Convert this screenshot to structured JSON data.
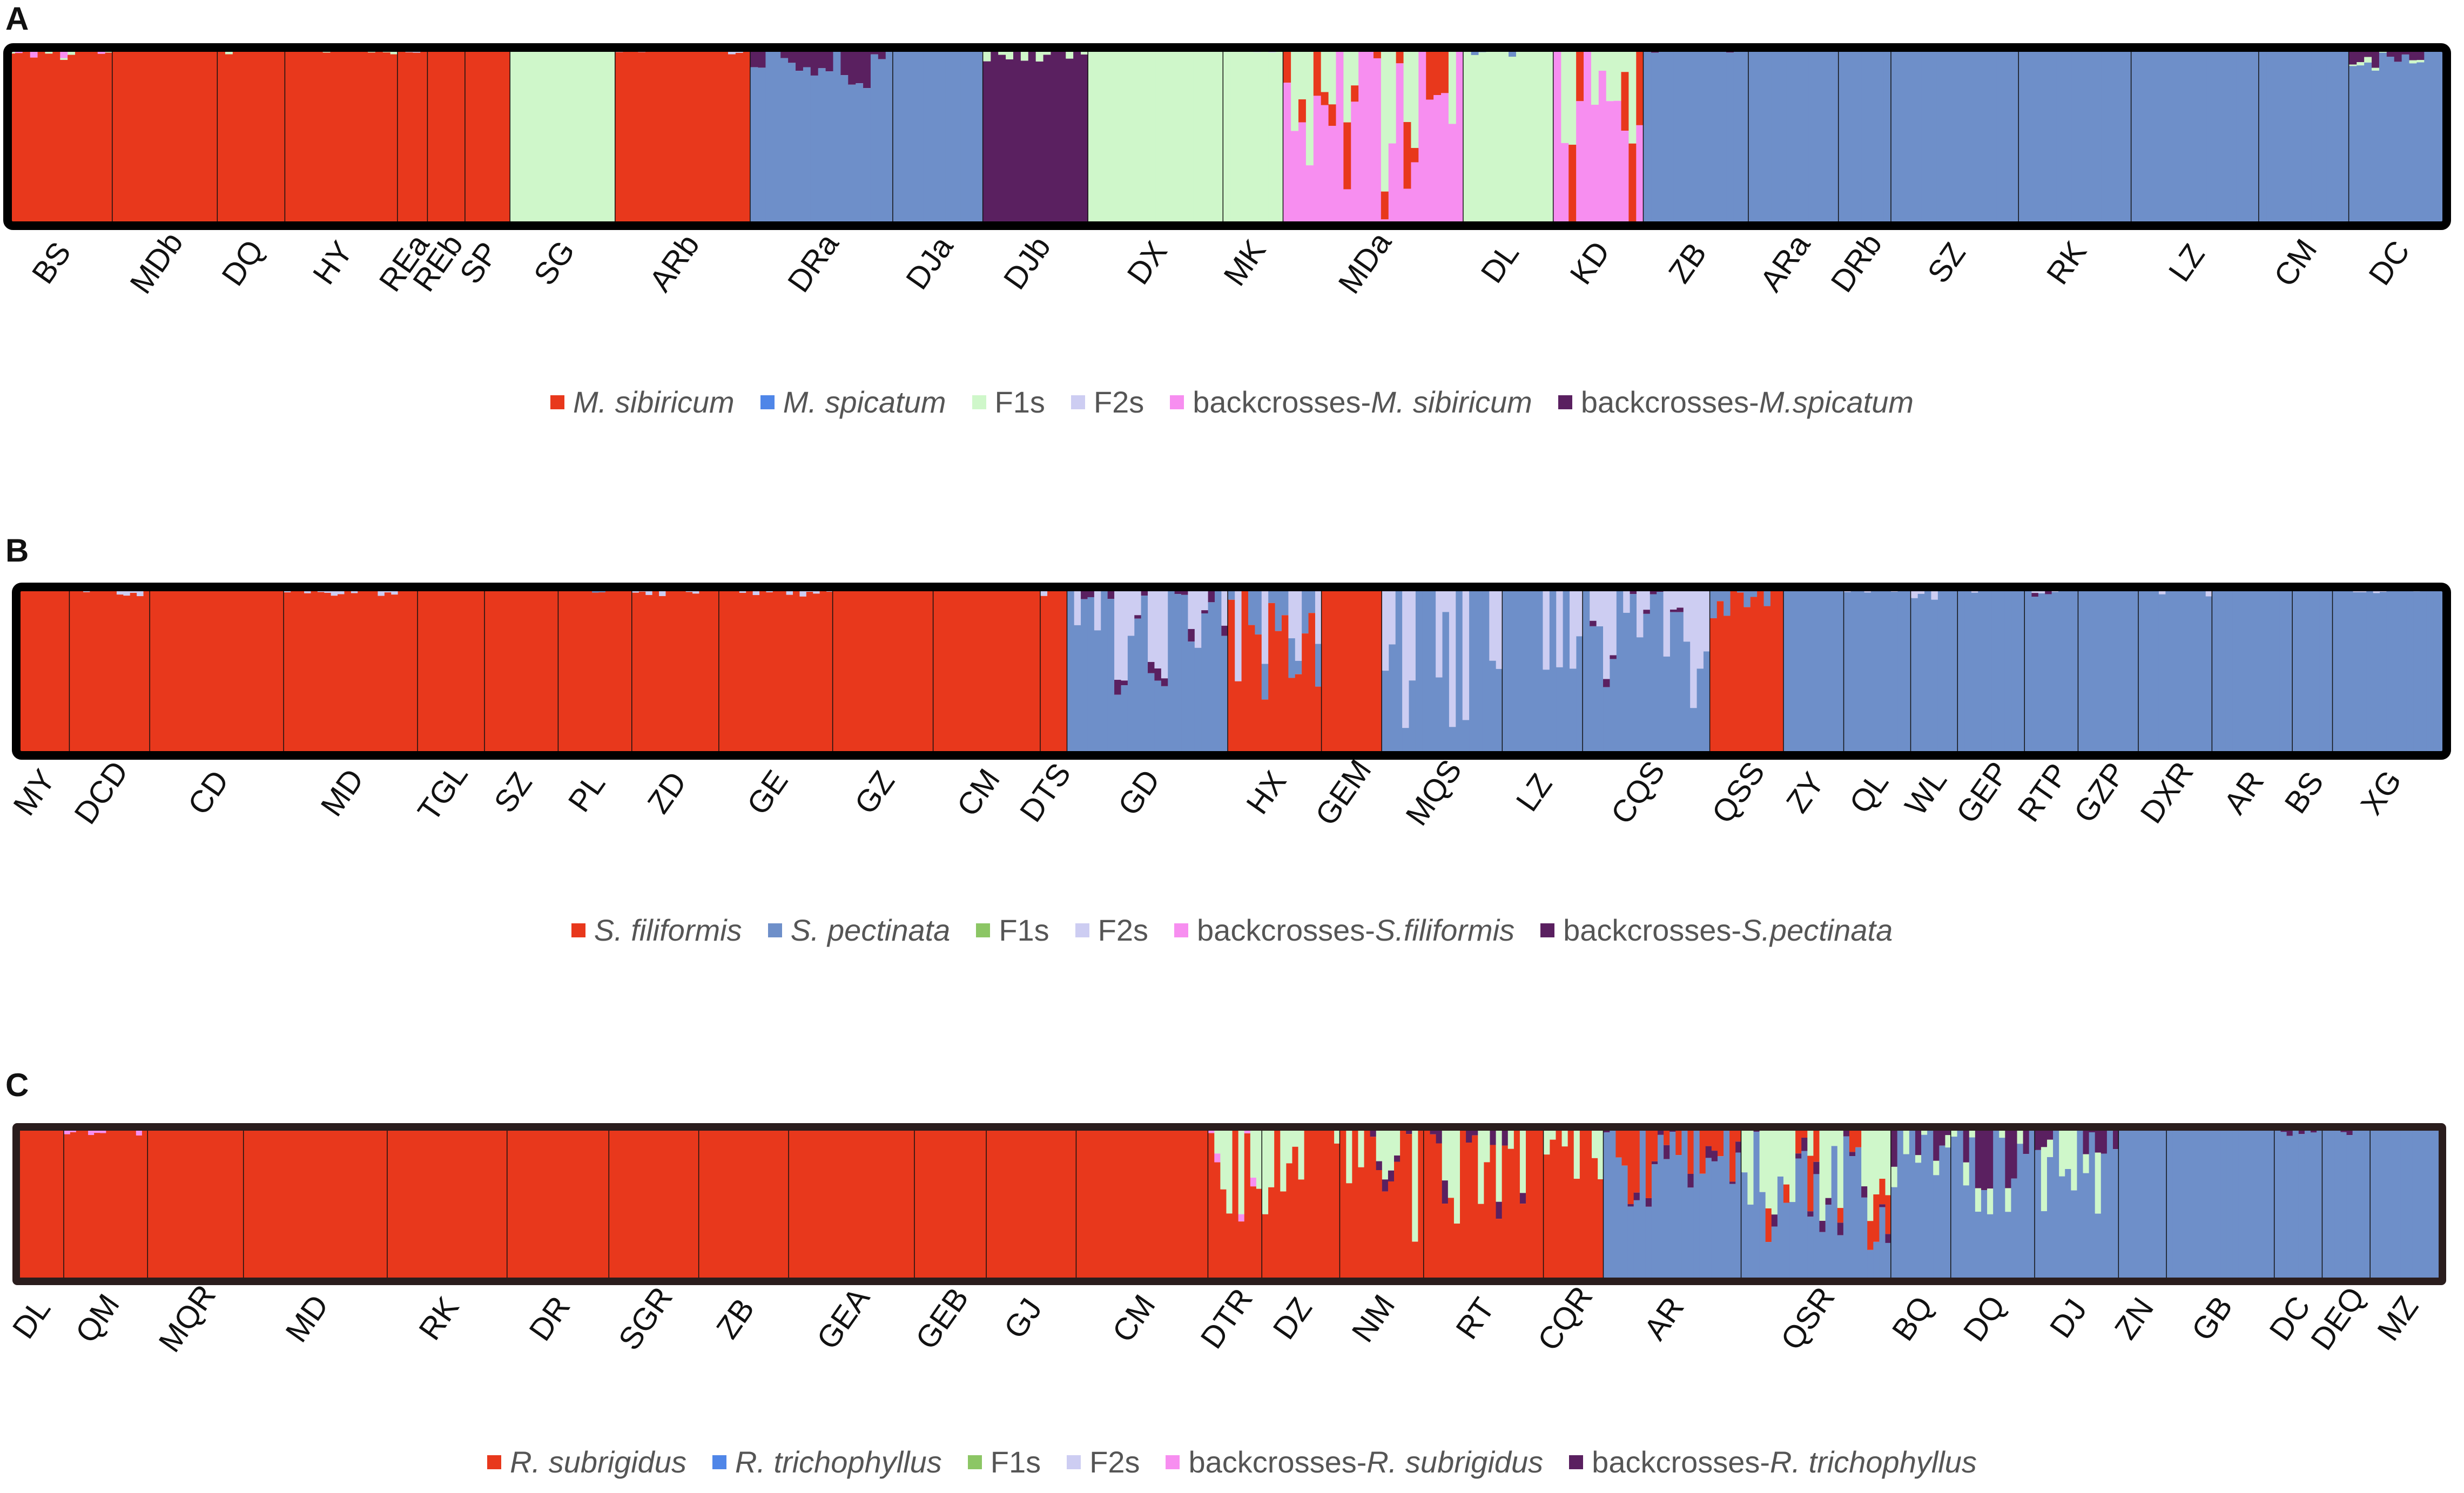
{
  "chart_data": [
    {
      "type": "stacked_bar_structure",
      "panel": "A",
      "classes": [
        {
          "key": "p1",
          "name": "M. sibiricum",
          "color": "#E8381C"
        },
        {
          "key": "p2",
          "name": "M. spicatum",
          "color": "#6E8FC9"
        },
        {
          "key": "f1",
          "name": "F1s",
          "color": "#CFF7CA"
        },
        {
          "key": "f2",
          "name": "F2s",
          "color": "#CDCDF2"
        },
        {
          "key": "bc1",
          "name": "backcrosses-M. sibiricum",
          "color": "#F78EF0"
        },
        {
          "key": "bc2",
          "name": "backcrosses-M.spicatum",
          "color": "#5A2060"
        }
      ],
      "legend": [
        {
          "text_pre": "",
          "text_italic": "M. sibiricum",
          "color": "#E8381C"
        },
        {
          "text_pre": "",
          "text_italic": "M. spicatum",
          "color": "#4F86E8"
        },
        {
          "text_pre": "F1s",
          "text_italic": "",
          "color": "#CFF7CA"
        },
        {
          "text_pre": "F2s",
          "text_italic": "",
          "color": "#CDCDF2"
        },
        {
          "text_pre": "backcrosses-",
          "text_italic": "M. sibiricum",
          "color": "#F78EF0"
        },
        {
          "text_pre": "backcrosses-",
          "text_italic": "M.spicatum",
          "color": "#5A2060"
        }
      ],
      "populations": [
        {
          "label": "BS",
          "n": 14,
          "base": "p1",
          "minor": [
            [
              "bc1",
              0.04
            ],
            [
              "f1",
              0.01
            ]
          ]
        },
        {
          "label": "MDb",
          "n": 14,
          "base": "p1",
          "minor": []
        },
        {
          "label": "DQ",
          "n": 9,
          "base": "p1",
          "minor": [
            [
              "f1",
              0.02
            ]
          ]
        },
        {
          "label": "HY",
          "n": 15,
          "base": "p1",
          "minor": [
            [
              "f1",
              0.02
            ]
          ]
        },
        {
          "label": "REa",
          "n": 4,
          "base": "p1",
          "minor": [
            [
              "f2",
              0.02
            ]
          ]
        },
        {
          "label": "REb",
          "n": 5,
          "base": "p1",
          "minor": [
            [
              "f2",
              0.02
            ]
          ]
        },
        {
          "label": "SP",
          "n": 6,
          "base": "p1",
          "minor": [
            [
              "f2",
              0.01
            ]
          ]
        },
        {
          "label": "SG",
          "n": 14,
          "base": "f1",
          "minor": []
        },
        {
          "label": "ARb",
          "n": 18,
          "base": "p1",
          "minor": [
            [
              "f2",
              0.02
            ]
          ]
        },
        {
          "label": "DRa",
          "n": 19,
          "base": "p2",
          "minor": [
            [
              "bc2",
              0.12
            ]
          ]
        },
        {
          "label": "DJa",
          "n": 12,
          "base": "p2",
          "minor": [
            [
              "f2",
              0.01
            ]
          ]
        },
        {
          "label": "DJb",
          "n": 14,
          "base": "bc2",
          "minor": [
            [
              "f1",
              0.05
            ]
          ]
        },
        {
          "label": "DX",
          "n": 18,
          "base": "f1",
          "minor": [
            [
              "f2",
              0.01
            ]
          ]
        },
        {
          "label": "MK",
          "n": 8,
          "base": "f1",
          "minor": [
            [
              "f2",
              0.02
            ]
          ]
        },
        {
          "label": "MDa",
          "n": 24,
          "base": "bc1",
          "minor": [
            [
              "f1",
              0.45
            ],
            [
              "p1",
              0.2
            ]
          ]
        },
        {
          "label": "DL",
          "n": 12,
          "base": "f1",
          "minor": [
            [
              "p2",
              0.05
            ]
          ]
        },
        {
          "label": "KD",
          "n": 12,
          "base": "bc1",
          "minor": [
            [
              "f1",
              0.3
            ],
            [
              "p1",
              0.3
            ]
          ]
        },
        {
          "label": "ZB",
          "n": 14,
          "base": "p2",
          "minor": [
            [
              "bc2",
              0.02
            ]
          ]
        },
        {
          "label": "ARa",
          "n": 12,
          "base": "p2",
          "minor": []
        },
        {
          "label": "DRb",
          "n": 7,
          "base": "p2",
          "minor": []
        },
        {
          "label": "SZ",
          "n": 17,
          "base": "p2",
          "minor": []
        },
        {
          "label": "RK",
          "n": 15,
          "base": "p2",
          "minor": []
        },
        {
          "label": "LZ",
          "n": 17,
          "base": "p2",
          "minor": []
        },
        {
          "label": "CM",
          "n": 12,
          "base": "p2",
          "minor": []
        },
        {
          "label": "DC",
          "n": 13,
          "base": "p2",
          "minor": [
            [
              "bc2",
              0.06
            ],
            [
              "f1",
              0.02
            ]
          ]
        }
      ]
    },
    {
      "type": "stacked_bar_structure",
      "panel": "B",
      "classes": [
        {
          "key": "p1",
          "name": "S. filiformis",
          "color": "#E8381C"
        },
        {
          "key": "p2",
          "name": "S. pectinata",
          "color": "#6E8FC9"
        },
        {
          "key": "f1",
          "name": "F1s",
          "color": "#8CC665"
        },
        {
          "key": "f2",
          "name": "F2s",
          "color": "#CDCDF2"
        },
        {
          "key": "bc1",
          "name": "backcrosses-S.filiformis",
          "color": "#F78EF0"
        },
        {
          "key": "bc2",
          "name": "backcrosses-S.pectinata",
          "color": "#5A2060"
        }
      ],
      "legend": [
        {
          "text_pre": "",
          "text_italic": "S. filiformis",
          "color": "#E8381C"
        },
        {
          "text_pre": "",
          "text_italic": "S. pectinata",
          "color": "#6E8FC9"
        },
        {
          "text_pre": "F1s",
          "text_italic": "",
          "color": "#8CC665"
        },
        {
          "text_pre": "F2s",
          "text_italic": "",
          "color": "#CDCDF2"
        },
        {
          "text_pre": "backcrosses-",
          "text_italic": "S.filiformis",
          "color": "#F78EF0"
        },
        {
          "text_pre": "backcrosses-",
          "text_italic": "S.pectinata",
          "color": "#5A2060"
        }
      ],
      "populations": [
        {
          "label": "MY",
          "n": 8,
          "base": "p1",
          "minor": []
        },
        {
          "label": "DCD",
          "n": 12,
          "base": "p1",
          "minor": [
            [
              "f2",
              0.03
            ]
          ]
        },
        {
          "label": "CD",
          "n": 20,
          "base": "p1",
          "minor": []
        },
        {
          "label": "MD",
          "n": 20,
          "base": "p1",
          "minor": [
            [
              "f2",
              0.03
            ]
          ]
        },
        {
          "label": "TGL",
          "n": 10,
          "base": "p1",
          "minor": []
        },
        {
          "label": "SZ",
          "n": 11,
          "base": "p1",
          "minor": [
            [
              "f2",
              0.01
            ]
          ]
        },
        {
          "label": "PL",
          "n": 11,
          "base": "p1",
          "minor": [
            [
              "p2",
              0.02
            ]
          ]
        },
        {
          "label": "ZD",
          "n": 13,
          "base": "p1",
          "minor": [
            [
              "f2",
              0.03
            ]
          ]
        },
        {
          "label": "GE",
          "n": 17,
          "base": "p1",
          "minor": [
            [
              "f2",
              0.03
            ]
          ]
        },
        {
          "label": "GZ",
          "n": 15,
          "base": "p1",
          "minor": []
        },
        {
          "label": "CM",
          "n": 16,
          "base": "p1",
          "minor": []
        },
        {
          "label": "DTS",
          "n": 4,
          "base": "p1",
          "minor": [
            [
              "f2",
              0.05
            ]
          ]
        },
        {
          "label": "GD",
          "n": 24,
          "base": "p2",
          "minor": [
            [
              "f2",
              0.3
            ],
            [
              "bc2",
              0.05
            ]
          ]
        },
        {
          "label": "HX",
          "n": 14,
          "base": "p1",
          "minor": [
            [
              "f2",
              0.3
            ],
            [
              "p2",
              0.15
            ]
          ]
        },
        {
          "label": "GEM",
          "n": 9,
          "base": "p1",
          "minor": []
        },
        {
          "label": "MQS",
          "n": 18,
          "base": "p2",
          "minor": [
            [
              "f2",
              0.45
            ]
          ]
        },
        {
          "label": "LZ",
          "n": 12,
          "base": "p2",
          "minor": [
            [
              "f2",
              0.3
            ]
          ]
        },
        {
          "label": "CQS",
          "n": 19,
          "base": "p2",
          "minor": [
            [
              "f2",
              0.4
            ],
            [
              "bc2",
              0.03
            ]
          ]
        },
        {
          "label": "QSS",
          "n": 11,
          "base": "p1",
          "minor": [
            [
              "p2",
              0.1
            ]
          ]
        },
        {
          "label": "ZY",
          "n": 9,
          "base": "p2",
          "minor": []
        },
        {
          "label": "QL",
          "n": 10,
          "base": "p2",
          "minor": [
            [
              "f2",
              0.02
            ]
          ]
        },
        {
          "label": "WL",
          "n": 7,
          "base": "p2",
          "minor": [
            [
              "f2",
              0.04
            ]
          ]
        },
        {
          "label": "GEP",
          "n": 10,
          "base": "p2",
          "minor": [
            [
              "f2",
              0.03
            ]
          ]
        },
        {
          "label": "RTP",
          "n": 8,
          "base": "p2",
          "minor": [
            [
              "f2",
              0.02
            ],
            [
              "bc2",
              0.02
            ]
          ]
        },
        {
          "label": "GZP",
          "n": 9,
          "base": "p2",
          "minor": [
            [
              "f2",
              0.01
            ]
          ]
        },
        {
          "label": "DXR",
          "n": 11,
          "base": "p2",
          "minor": [
            [
              "f2",
              0.03
            ]
          ]
        },
        {
          "label": "AR",
          "n": 12,
          "base": "p2",
          "minor": []
        },
        {
          "label": "BS",
          "n": 6,
          "base": "p2",
          "minor": [
            [
              "f2",
              0.01
            ]
          ]
        },
        {
          "label": "XG",
          "n": 17,
          "base": "p2",
          "minor": [
            [
              "f2",
              0.02
            ]
          ]
        }
      ]
    },
    {
      "type": "stacked_bar_structure",
      "panel": "C",
      "classes": [
        {
          "key": "p1",
          "name": "R. subrigidus",
          "color": "#E8381C"
        },
        {
          "key": "p2",
          "name": "R. trichophyllus",
          "color": "#6E8FC9"
        },
        {
          "key": "f1",
          "name": "F1s",
          "color": "#CFF7CA"
        },
        {
          "key": "f2",
          "name": "F2s",
          "color": "#CDCDF2"
        },
        {
          "key": "bc1",
          "name": "backcrosses-R. subrigidus",
          "color": "#F78EF0"
        },
        {
          "key": "bc2",
          "name": "backcrosses-R. trichophyllus",
          "color": "#5A2060"
        }
      ],
      "legend": [
        {
          "text_pre": "",
          "text_italic": "R. subrigidus",
          "color": "#E8381C"
        },
        {
          "text_pre": "",
          "text_italic": "R. trichophyllus",
          "color": "#4F86E8"
        },
        {
          "text_pre": "F1s",
          "text_italic": "",
          "color": "#8CC665"
        },
        {
          "text_pre": "F2s",
          "text_italic": "",
          "color": "#CDCDF2"
        },
        {
          "text_pre": "backcrosses-",
          "text_italic": "R. subrigidus",
          "color": "#F78EF0"
        },
        {
          "text_pre": "backcrosses-",
          "text_italic": "R. trichophyllus",
          "color": "#5A2060"
        }
      ],
      "populations": [
        {
          "label": "DL",
          "n": 8,
          "base": "p1",
          "minor": []
        },
        {
          "label": "QM",
          "n": 14,
          "base": "p1",
          "minor": [
            [
              "bc1",
              0.03
            ]
          ]
        },
        {
          "label": "MQR",
          "n": 16,
          "base": "p1",
          "minor": []
        },
        {
          "label": "MD",
          "n": 24,
          "base": "p1",
          "minor": []
        },
        {
          "label": "RK",
          "n": 20,
          "base": "p1",
          "minor": []
        },
        {
          "label": "DR",
          "n": 17,
          "base": "p1",
          "minor": []
        },
        {
          "label": "SGR",
          "n": 15,
          "base": "p1",
          "minor": []
        },
        {
          "label": "ZB",
          "n": 15,
          "base": "p1",
          "minor": []
        },
        {
          "label": "GEA",
          "n": 21,
          "base": "p1",
          "minor": []
        },
        {
          "label": "GEB",
          "n": 12,
          "base": "p1",
          "minor": []
        },
        {
          "label": "GJ",
          "n": 15,
          "base": "p1",
          "minor": []
        },
        {
          "label": "CM",
          "n": 22,
          "base": "p1",
          "minor": []
        },
        {
          "label": "DTR",
          "n": 9,
          "base": "p1",
          "minor": [
            [
              "f1",
              0.3
            ],
            [
              "bc1",
              0.03
            ]
          ]
        },
        {
          "label": "DZ",
          "n": 13,
          "base": "p1",
          "minor": [
            [
              "f1",
              0.3
            ]
          ]
        },
        {
          "label": "NM",
          "n": 14,
          "base": "p1",
          "minor": [
            [
              "f1",
              0.4
            ],
            [
              "bc2",
              0.05
            ]
          ]
        },
        {
          "label": "RT",
          "n": 20,
          "base": "p1",
          "minor": [
            [
              "f1",
              0.35
            ],
            [
              "bc2",
              0.08
            ]
          ]
        },
        {
          "label": "CQR",
          "n": 10,
          "base": "p1",
          "minor": [
            [
              "f1",
              0.2
            ]
          ]
        },
        {
          "label": "AR",
          "n": 23,
          "base": "p2",
          "minor": [
            [
              "p1",
              0.3
            ],
            [
              "bc2",
              0.05
            ]
          ]
        },
        {
          "label": "QSR",
          "n": 25,
          "base": "p2",
          "minor": [
            [
              "f1",
              0.35
            ],
            [
              "p1",
              0.2
            ],
            [
              "bc2",
              0.05
            ]
          ]
        },
        {
          "label": "BQ",
          "n": 10,
          "base": "p2",
          "minor": [
            [
              "bc2",
              0.15
            ],
            [
              "f1",
              0.1
            ]
          ]
        },
        {
          "label": "DQ",
          "n": 14,
          "base": "p2",
          "minor": [
            [
              "bc2",
              0.25
            ],
            [
              "f1",
              0.1
            ]
          ]
        },
        {
          "label": "DJ",
          "n": 14,
          "base": "p2",
          "minor": [
            [
              "bc2",
              0.1
            ],
            [
              "f1",
              0.25
            ]
          ]
        },
        {
          "label": "ZN",
          "n": 8,
          "base": "p2",
          "minor": [
            [
              "bc2",
              0.02
            ]
          ]
        },
        {
          "label": "GB",
          "n": 18,
          "base": "p2",
          "minor": []
        },
        {
          "label": "DC",
          "n": 8,
          "base": "p2",
          "minor": [
            [
              "bc2",
              0.04
            ]
          ]
        },
        {
          "label": "DEQ",
          "n": 8,
          "base": "p2",
          "minor": [
            [
              "bc2",
              0.03
            ]
          ]
        },
        {
          "label": "MZ",
          "n": 12,
          "base": "p2",
          "minor": []
        }
      ]
    }
  ]
}
